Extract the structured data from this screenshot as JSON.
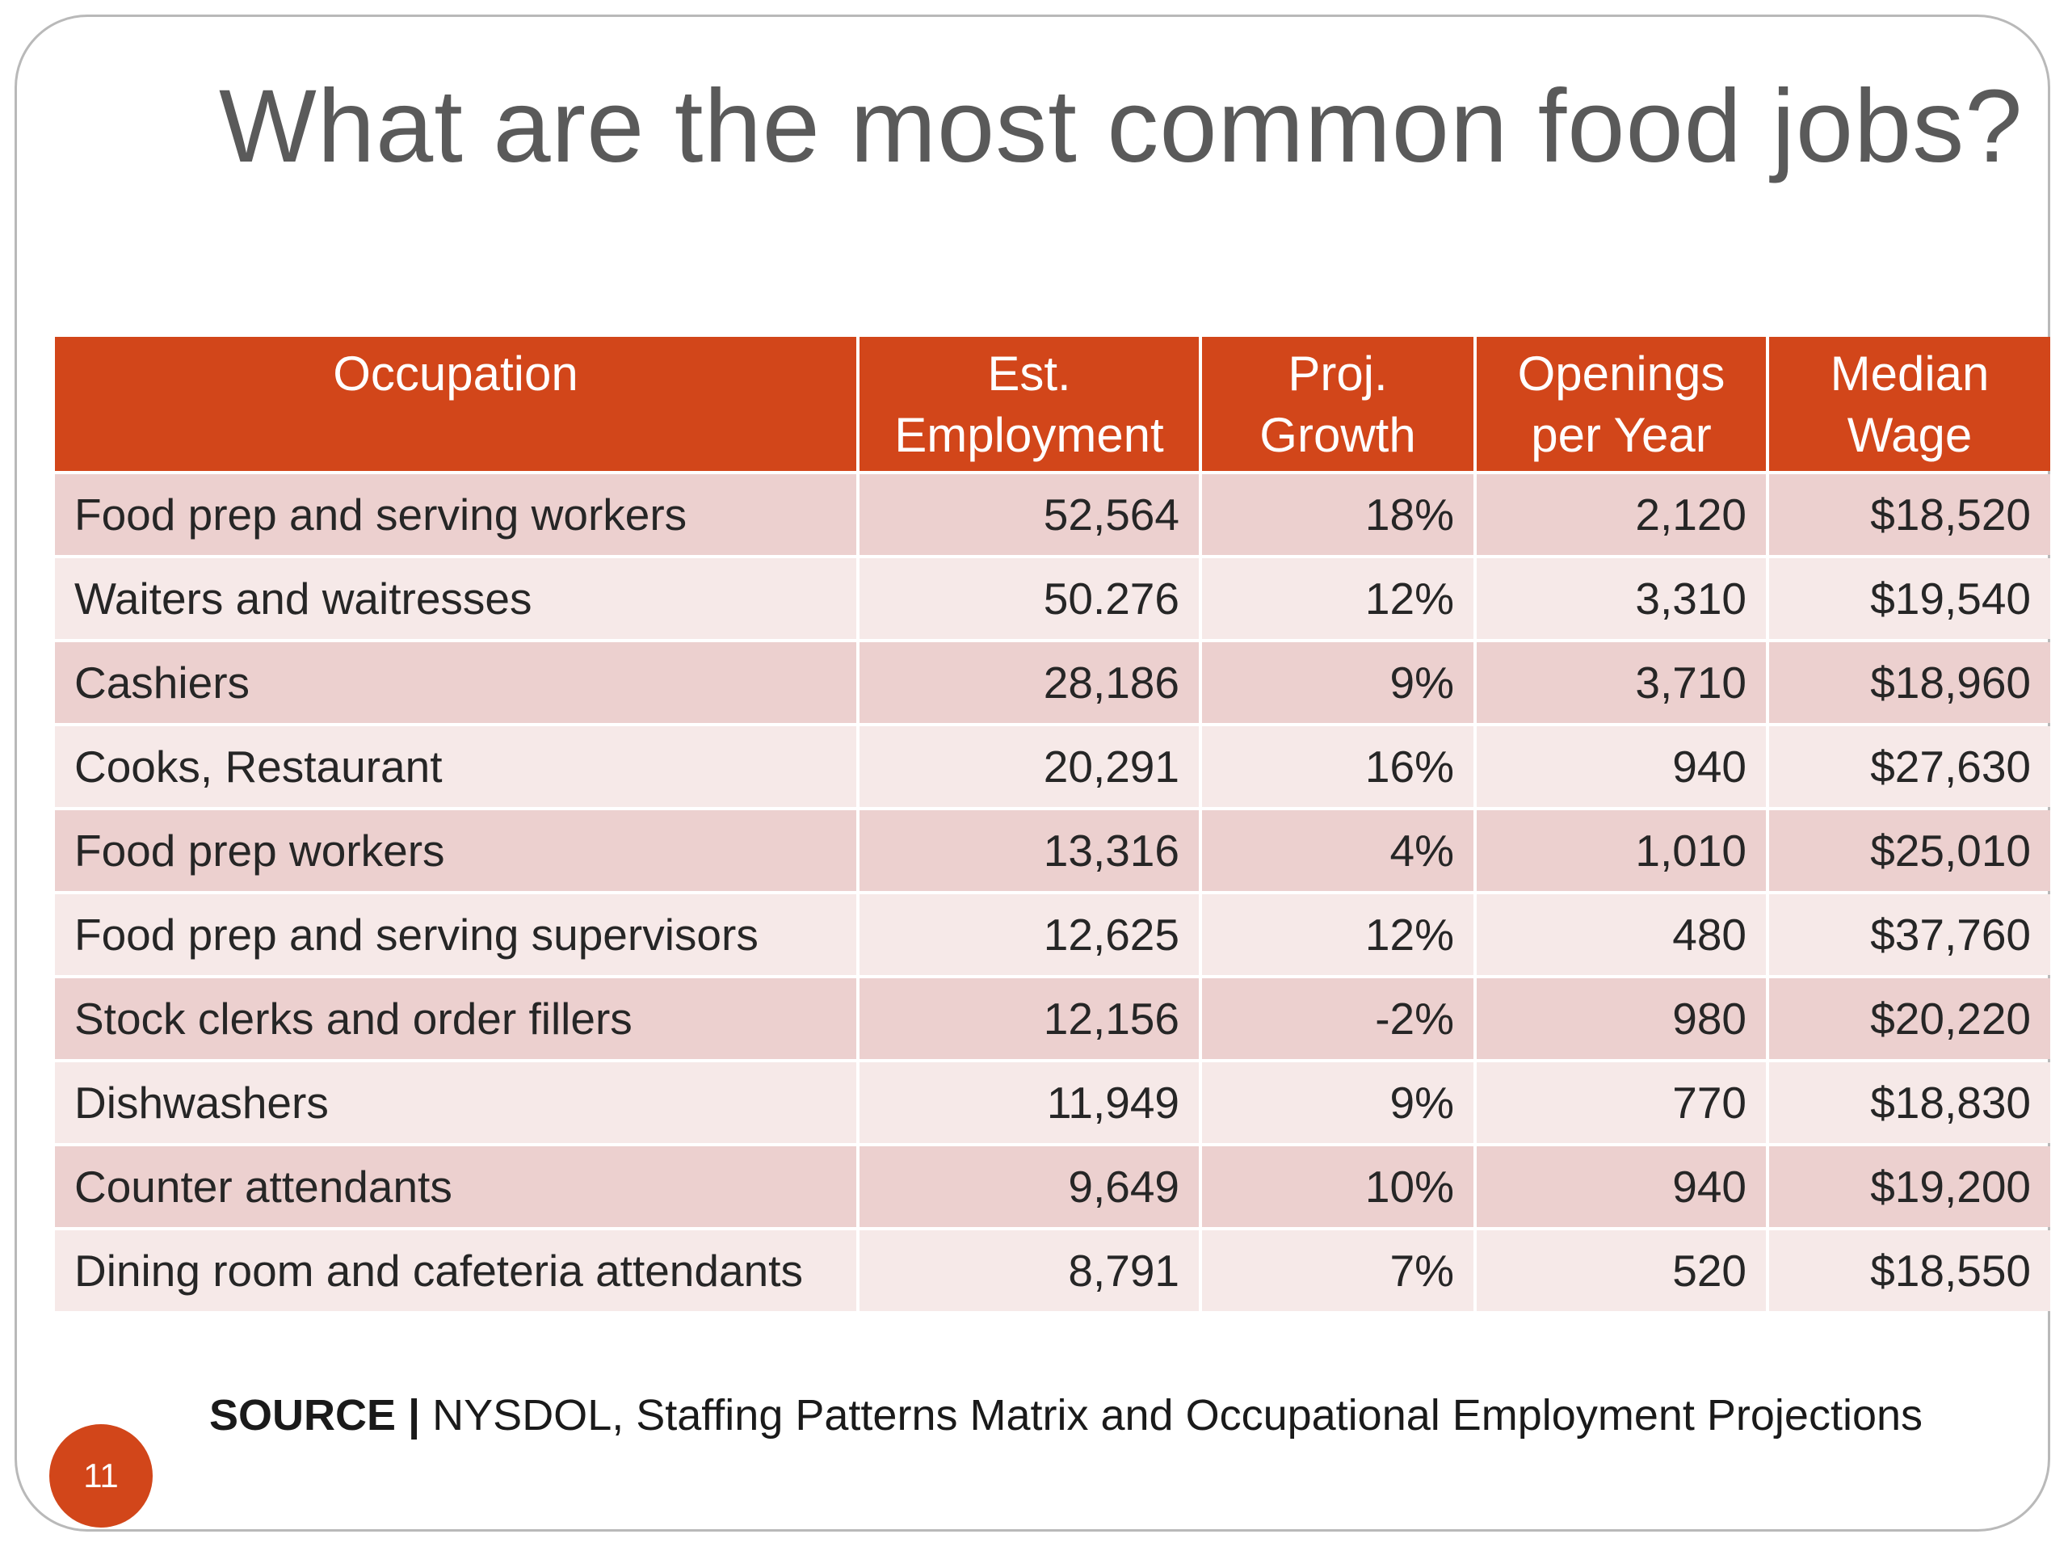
{
  "title": "What are the most common food jobs?",
  "table": {
    "headers": [
      {
        "line1": "Occupation",
        "line2": ""
      },
      {
        "line1": "Est.",
        "line2": "Employment"
      },
      {
        "line1": "Proj.",
        "line2": "Growth"
      },
      {
        "line1": "Openings",
        "line2": "per Year"
      },
      {
        "line1": "Median",
        "line2": "Wage"
      }
    ],
    "rows": [
      {
        "occupation": "Food prep and serving workers",
        "employment": "52,564",
        "growth": "18%",
        "openings": "2,120",
        "wage": "$18,520"
      },
      {
        "occupation": "Waiters and waitresses",
        "employment": "50.276",
        "growth": "12%",
        "openings": "3,310",
        "wage": "$19,540"
      },
      {
        "occupation": "Cashiers",
        "employment": "28,186",
        "growth": "9%",
        "openings": "3,710",
        "wage": "$18,960"
      },
      {
        "occupation": "Cooks, Restaurant",
        "employment": "20,291",
        "growth": "16%",
        "openings": "940",
        "wage": "$27,630"
      },
      {
        "occupation": "Food prep workers",
        "employment": "13,316",
        "growth": "4%",
        "openings": "1,010",
        "wage": "$25,010"
      },
      {
        "occupation": "Food prep and serving supervisors",
        "employment": "12,625",
        "growth": "12%",
        "openings": "480",
        "wage": "$37,760"
      },
      {
        "occupation": "Stock clerks and order fillers",
        "employment": "12,156",
        "growth": "-2%",
        "openings": "980",
        "wage": "$20,220"
      },
      {
        "occupation": "Dishwashers",
        "employment": "11,949",
        "growth": "9%",
        "openings": "770",
        "wage": "$18,830"
      },
      {
        "occupation": "Counter attendants",
        "employment": "9,649",
        "growth": "10%",
        "openings": "940",
        "wage": "$19,200"
      },
      {
        "occupation": "Dining room and cafeteria attendants",
        "employment": "8,791",
        "growth": "7%",
        "openings": "520",
        "wage": "$18,550"
      }
    ]
  },
  "source": {
    "label": "SOURCE |",
    "text": "NYSDOL, Staffing Patterns Matrix and Occupational Employment Projections"
  },
  "slide_number": "11",
  "colors": {
    "accent": "#d2461a",
    "row_odd": "#ecd0cf",
    "row_even": "#f6e9e8",
    "title_text": "#5a5a5a"
  }
}
